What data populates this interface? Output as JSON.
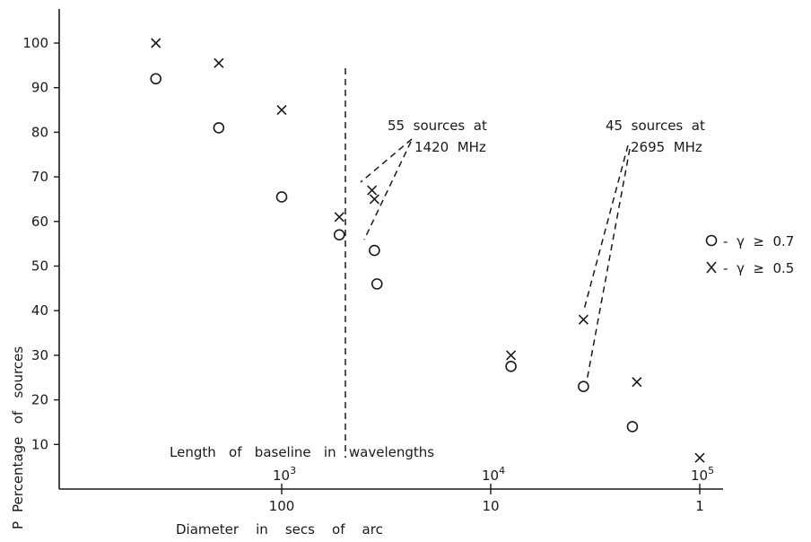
{
  "chart_data": {
    "type": "scatter",
    "ylabel_letter": "P",
    "ylabel": "Percentage   of   sources",
    "xlabel_bottom": "Diameter    in    secs    of    arc",
    "xlabel_inner": "Length   of   baseline   in   wavelengths",
    "ylim": [
      0,
      105
    ],
    "y_ticks": [
      10,
      20,
      30,
      40,
      50,
      60,
      70,
      80,
      90,
      100
    ],
    "y_tick_labels": [
      "10",
      "20",
      "30",
      "40",
      "50",
      "60",
      "70",
      "80",
      "90",
      "100"
    ],
    "x_scale": "log, decreasing to the right",
    "diameter_ticks": [
      {
        "value": 100,
        "label": "100"
      },
      {
        "value": 10,
        "label": "10"
      },
      {
        "value": 1,
        "label": "1"
      }
    ],
    "baseline_ticks": [
      {
        "value": 1000,
        "label": "10",
        "exp": "3"
      },
      {
        "value": 10000,
        "label": "10",
        "exp": "4"
      },
      {
        "value": 100000,
        "label": "10",
        "exp": "5"
      }
    ],
    "series": [
      {
        "name": "γ ≥ 0.7",
        "marker": "circle",
        "points": [
          {
            "x": 400,
            "y": 92
          },
          {
            "x": 200,
            "y": 81
          },
          {
            "x": 100,
            "y": 65.5
          },
          {
            "x": 53,
            "y": 57
          },
          {
            "x": 36,
            "y": 53.5
          },
          {
            "x": 35,
            "y": 46
          },
          {
            "x": 8,
            "y": 27.5
          },
          {
            "x": 3.6,
            "y": 23
          },
          {
            "x": 2.1,
            "y": 14
          }
        ]
      },
      {
        "name": "γ ≥ 0.5",
        "marker": "x",
        "points": [
          {
            "x": 400,
            "y": 100
          },
          {
            "x": 200,
            "y": 95.5
          },
          {
            "x": 100,
            "y": 85
          },
          {
            "x": 53,
            "y": 61
          },
          {
            "x": 37,
            "y": 67
          },
          {
            "x": 36,
            "y": 65
          },
          {
            "x": 8,
            "y": 30
          },
          {
            "x": 3.6,
            "y": 38
          },
          {
            "x": 2.0,
            "y": 24
          },
          {
            "x": 1.0,
            "y": 7
          }
        ]
      }
    ],
    "legend": {
      "placement": "right",
      "items": [
        {
          "symbol": "circle",
          "label": "-  γ  ≥  0.7"
        },
        {
          "symbol": "x",
          "label": "-  γ  ≥  0.5"
        }
      ]
    },
    "annotations": [
      {
        "line1": "55  sources  at",
        "line2": "1420  MHz"
      },
      {
        "line1": "45  sources  at",
        "line2": "2695  MHz"
      }
    ]
  }
}
